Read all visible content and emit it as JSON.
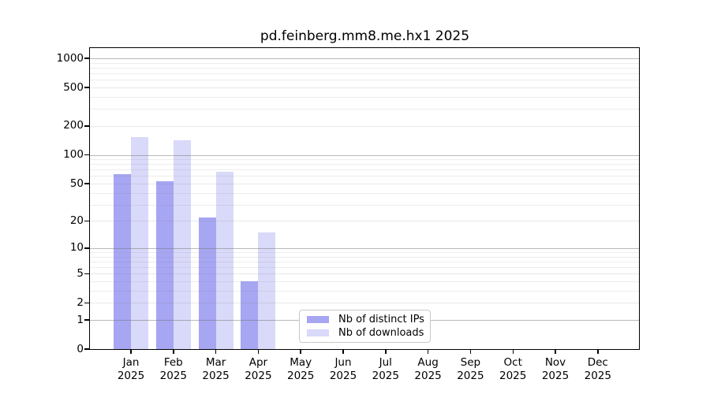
{
  "chart_data": {
    "type": "bar",
    "title": "pd.feinberg.mm8.me.hx1 2025",
    "categories": [
      "Jan",
      "Feb",
      "Mar",
      "Apr",
      "May",
      "Jun",
      "Jul",
      "Aug",
      "Sep",
      "Oct",
      "Nov",
      "Dec"
    ],
    "x_year_label": "2025",
    "series": [
      {
        "key": "distinct-ips",
        "name": "Nb of distinct IPs",
        "color": "#a6a6f3",
        "values": [
          63,
          53,
          22,
          4,
          0,
          0,
          0,
          0,
          0,
          0,
          0,
          0
        ]
      },
      {
        "key": "downloads",
        "name": "Nb of downloads",
        "color": "#d9d9f9",
        "values": [
          152,
          141,
          67,
          15,
          0,
          0,
          0,
          0,
          0,
          0,
          0,
          0
        ]
      }
    ],
    "y_ticks": [
      0,
      1,
      2,
      5,
      10,
      20,
      50,
      100,
      200,
      500,
      1000
    ],
    "y_minor_ticks": [
      3,
      4,
      6,
      7,
      8,
      9,
      30,
      40,
      60,
      70,
      80,
      90,
      300,
      400,
      600,
      700,
      800,
      900
    ],
    "y_scale": "log10(value+1)",
    "ylim": [
      0,
      1276
    ],
    "xlabel": "",
    "ylabel": "",
    "grid": true,
    "legend_position": "inside-bottom-center"
  }
}
